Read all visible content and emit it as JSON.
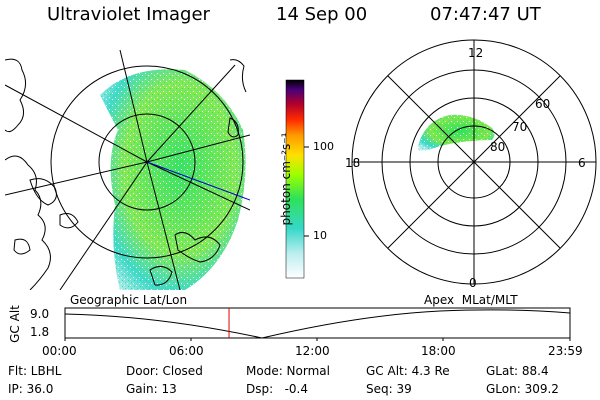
{
  "header": {
    "instrument": "Ultraviolet Imager",
    "date": "14 Sep 00",
    "time": "07:47:47 UT"
  },
  "colorbar": {
    "unit_label": "photon cm⁻²s⁻¹",
    "ticks": [
      "100",
      "10"
    ]
  },
  "geographic_panel": {
    "caption": "Geographic Lat/Lon"
  },
  "polar_panel": {
    "caption": "Apex  MLat/MLT",
    "mlt_labels": [
      "12",
      "18",
      "6",
      "0"
    ],
    "mlat_labels": [
      "60",
      "70",
      "80"
    ]
  },
  "altitude_plot": {
    "ylabel": "GC Alt",
    "yticks": [
      "9.0",
      "1.8"
    ],
    "xticks": [
      "00:00",
      "06:00",
      "12:00",
      "18:00",
      "23:59"
    ],
    "current_time_fraction": 0.3248,
    "marker_color": "#e00000"
  },
  "status": {
    "filter": "Flt: LBHL",
    "door": "Door: Closed",
    "mode": "Mode: Normal",
    "gc_alt": "GC Alt: 4.3 Re",
    "glat": "GLat: 88.4",
    "ip": "IP: 36.0",
    "gain": "Gain: 13",
    "dsp": "Dsp:   -0.4",
    "seq": "Seq: 39",
    "glon": "GLon: 309.2"
  },
  "colors": {
    "scale": [
      "#000000",
      "#4a007a",
      "#b0002e",
      "#ff2a00",
      "#ff9a00",
      "#ffe000",
      "#9cff00",
      "#2ee15a",
      "#36d8c8",
      "#bfeef0",
      "#ffffff"
    ]
  }
}
